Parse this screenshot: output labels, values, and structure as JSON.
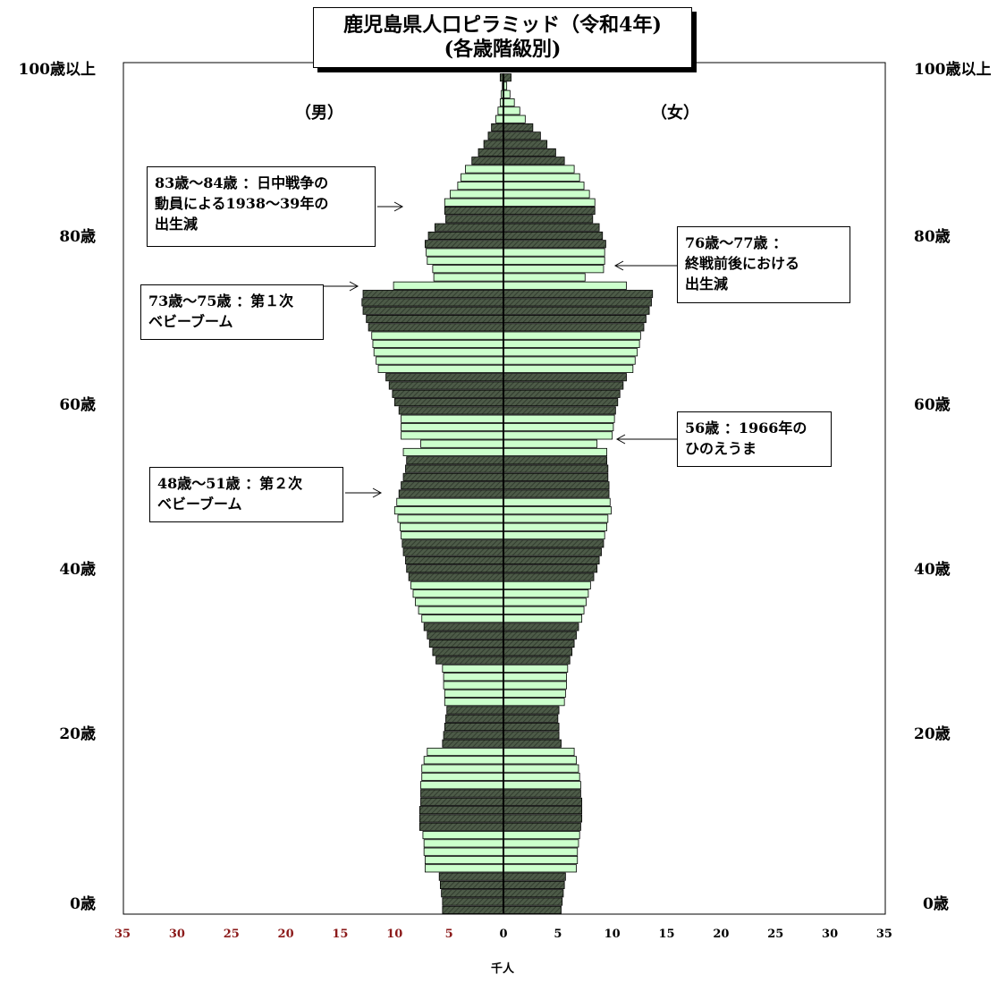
{
  "title": {
    "line1": "鹿児島県人口ピラミッド（令和4年)",
    "line2": "(各歳階級別)"
  },
  "labels": {
    "male": "（男）",
    "female": "（女）",
    "unit": "千人"
  },
  "age_labels": [
    "0歳",
    "20歳",
    "40歳",
    "60歳",
    "80歳",
    "100歳以上"
  ],
  "x_tick_labels": [
    "35",
    "30",
    "25",
    "20",
    "15",
    "10",
    "5",
    "0",
    "5",
    "10",
    "15",
    "20",
    "25",
    "30",
    "35"
  ],
  "annotations": [
    {
      "id": "ann-83-84",
      "text": "83歳～84歳 ：日中戦争の\n動員による1938～39年の\n出生減"
    },
    {
      "id": "ann-76-77",
      "text": "76歳～77歳 ：\n終戦前後における\n出生減"
    },
    {
      "id": "ann-73-75",
      "text": "73歳～75歳 ：第１次\nベビーブーム"
    },
    {
      "id": "ann-56",
      "text": "56歳 ：1966年の\nひのえうま"
    },
    {
      "id": "ann-48-51",
      "text": "48歳～51歳 ：第２次\nベビーブーム"
    }
  ],
  "colors": {
    "dark_bar": "#4d5b48",
    "light_bar": "#ccffcc",
    "bar_stroke": "#000000",
    "left_tick": "#8b1a1a",
    "right_tick": "#000000",
    "axis": "#000000"
  },
  "chart_data": {
    "type": "bar",
    "orientation": "horizontal",
    "title": "鹿児島県人口ピラミッド（令和4年) (各歳階級別)",
    "xlabel": "千人",
    "ylabel": "",
    "xlim": [
      -35,
      35
    ],
    "ages": [
      0,
      1,
      2,
      3,
      4,
      5,
      6,
      7,
      8,
      9,
      10,
      11,
      12,
      13,
      14,
      15,
      16,
      17,
      18,
      19,
      20,
      21,
      22,
      23,
      24,
      25,
      26,
      27,
      28,
      29,
      30,
      31,
      32,
      33,
      34,
      35,
      36,
      37,
      38,
      39,
      40,
      41,
      42,
      43,
      44,
      45,
      46,
      47,
      48,
      49,
      50,
      51,
      52,
      53,
      54,
      55,
      56,
      57,
      58,
      59,
      60,
      61,
      62,
      63,
      64,
      65,
      66,
      67,
      68,
      69,
      70,
      71,
      72,
      73,
      74,
      75,
      76,
      77,
      78,
      79,
      80,
      81,
      82,
      83,
      84,
      85,
      86,
      87,
      88,
      89,
      90,
      91,
      92,
      93,
      94,
      95,
      96,
      97,
      98,
      99,
      "100以上"
    ],
    "bar_shading_pattern": "ages in blocks of 5 alternate: 0-4 dark, 5-9 light, 10-14 dark, ...",
    "series": [
      {
        "name": "男",
        "values": [
          5.6,
          5.6,
          5.7,
          5.8,
          5.9,
          7.2,
          7.2,
          7.3,
          7.3,
          7.4,
          7.7,
          7.7,
          7.7,
          7.6,
          7.6,
          7.6,
          7.5,
          7.5,
          7.3,
          7.0,
          5.6,
          5.5,
          5.4,
          5.3,
          5.2,
          5.4,
          5.4,
          5.5,
          5.5,
          5.6,
          6.2,
          6.5,
          6.8,
          7.0,
          7.3,
          7.5,
          7.8,
          8.1,
          8.3,
          8.5,
          8.7,
          8.9,
          9.0,
          9.2,
          9.3,
          9.4,
          9.5,
          9.7,
          10.0,
          9.8,
          9.6,
          9.4,
          9.2,
          9.0,
          8.9,
          9.2,
          7.6,
          9.4,
          9.4,
          9.4,
          9.6,
          10.0,
          10.2,
          10.5,
          10.8,
          11.5,
          11.7,
          11.9,
          12.0,
          12.1,
          12.4,
          12.6,
          12.9,
          13.0,
          12.9,
          10.1,
          6.4,
          6.5,
          7.0,
          7.1,
          7.2,
          6.9,
          6.3,
          5.3,
          5.4,
          5.4,
          4.9,
          4.2,
          3.9,
          3.5,
          2.9,
          2.3,
          1.8,
          1.4,
          1.1,
          0.7,
          0.5,
          0.3,
          0.2,
          0.1,
          0.3
        ]
      },
      {
        "name": "女",
        "values": [
          5.3,
          5.4,
          5.5,
          5.6,
          5.7,
          6.7,
          6.8,
          6.8,
          6.9,
          7.0,
          7.1,
          7.2,
          7.2,
          7.2,
          7.1,
          7.1,
          7.0,
          6.9,
          6.7,
          6.5,
          5.3,
          5.1,
          5.1,
          5.0,
          5.1,
          5.6,
          5.7,
          5.8,
          5.8,
          5.9,
          6.1,
          6.3,
          6.5,
          6.7,
          6.9,
          7.2,
          7.4,
          7.6,
          7.8,
          8.0,
          8.3,
          8.6,
          8.8,
          9.0,
          9.2,
          9.3,
          9.5,
          9.6,
          9.9,
          9.8,
          9.7,
          9.7,
          9.6,
          9.6,
          9.5,
          9.5,
          8.6,
          10.0,
          10.1,
          10.2,
          10.3,
          10.5,
          10.7,
          11.0,
          11.3,
          11.9,
          12.1,
          12.3,
          12.5,
          12.6,
          12.9,
          13.1,
          13.4,
          13.6,
          13.7,
          11.3,
          7.5,
          9.2,
          9.3,
          9.3,
          9.4,
          9.1,
          8.8,
          8.2,
          8.4,
          8.4,
          7.9,
          7.4,
          7.0,
          6.5,
          5.6,
          4.8,
          4.0,
          3.4,
          2.7,
          2.0,
          1.5,
          1.0,
          0.6,
          0.3,
          0.7
        ]
      }
    ]
  }
}
